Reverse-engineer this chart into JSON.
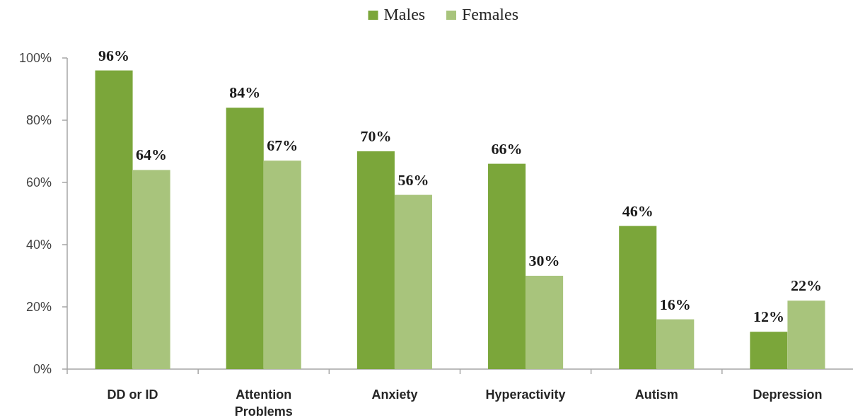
{
  "chart_data": {
    "type": "bar",
    "categories": [
      "DD or ID",
      "Attention Problems",
      "Anxiety",
      "Hyperactivity",
      "Autism",
      "Depression"
    ],
    "series": [
      {
        "name": "Males",
        "color": "#7ba63a",
        "values": [
          96,
          84,
          70,
          66,
          46,
          12
        ],
        "value_labels": [
          "96%",
          "84%",
          "70%",
          "66%",
          "46%",
          "12%"
        ]
      },
      {
        "name": "Females",
        "color": "#a8c47c",
        "values": [
          64,
          67,
          56,
          30,
          16,
          22
        ],
        "value_labels": [
          "64%",
          "67%",
          "56%",
          "30%",
          "16%",
          "22%"
        ]
      }
    ],
    "ylim": [
      0,
      100
    ],
    "yticks": [
      {
        "value": 0,
        "label": "0%"
      },
      {
        "value": 20,
        "label": "20%"
      },
      {
        "value": 40,
        "label": "40%"
      },
      {
        "value": 60,
        "label": "60%"
      },
      {
        "value": 80,
        "label": "80%"
      },
      {
        "value": 100,
        "label": "100%"
      }
    ],
    "legend": "top"
  }
}
